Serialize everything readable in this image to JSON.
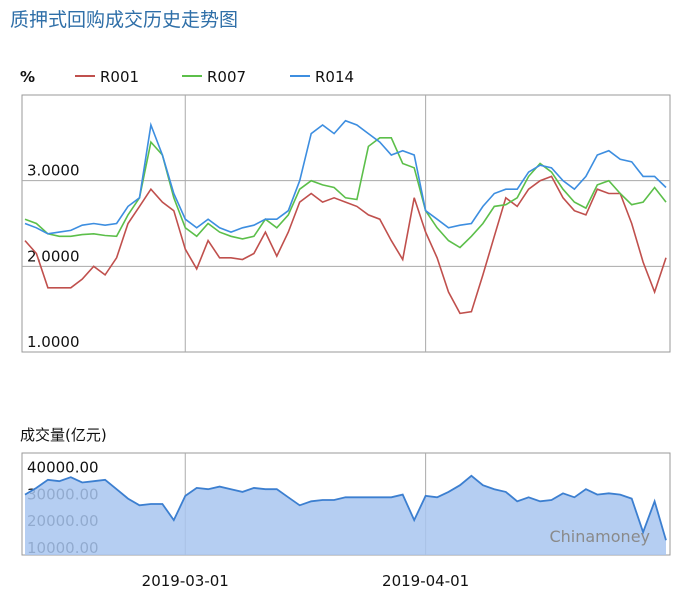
{
  "chart_data": [
    {
      "type": "line",
      "title": "质押式回购成交历史走势图",
      "y_label": "%",
      "ylim": [
        1,
        4
      ],
      "yticks": [
        {
          "value": 1,
          "label": "1.0000"
        },
        {
          "value": 2,
          "label": "2.0000"
        },
        {
          "value": 3,
          "label": "3.0000"
        }
      ],
      "grid": true,
      "series": [
        {
          "name": "R001",
          "color": "#c0504d",
          "values": [
            2.3,
            2.15,
            1.75,
            1.75,
            1.75,
            1.85,
            2.0,
            1.9,
            2.1,
            2.5,
            2.7,
            2.9,
            2.75,
            2.65,
            2.2,
            1.97,
            2.3,
            2.1,
            2.1,
            2.08,
            2.15,
            2.4,
            2.12,
            2.4,
            2.75,
            2.85,
            2.75,
            2.8,
            2.75,
            2.7,
            2.6,
            2.55,
            2.3,
            2.08,
            2.8,
            2.4,
            2.1,
            1.7,
            1.45,
            1.47,
            1.9,
            2.35,
            2.8,
            2.7,
            2.9,
            3.0,
            3.05,
            2.8,
            2.65,
            2.6,
            2.9,
            2.85,
            2.85,
            2.5,
            2.05,
            1.7,
            2.1
          ]
        },
        {
          "name": "R007",
          "color": "#5cbf4a",
          "values": [
            2.55,
            2.5,
            2.38,
            2.35,
            2.35,
            2.37,
            2.38,
            2.36,
            2.35,
            2.6,
            2.8,
            3.45,
            3.3,
            2.8,
            2.45,
            2.35,
            2.5,
            2.4,
            2.35,
            2.32,
            2.35,
            2.55,
            2.45,
            2.6,
            2.9,
            3.0,
            2.95,
            2.92,
            2.8,
            2.78,
            3.4,
            3.5,
            3.5,
            3.2,
            3.15,
            2.65,
            2.45,
            2.3,
            2.22,
            2.35,
            2.5,
            2.7,
            2.72,
            2.8,
            3.05,
            3.2,
            3.1,
            2.9,
            2.75,
            2.68,
            2.95,
            3.0,
            2.85,
            2.72,
            2.75,
            2.92,
            2.75
          ]
        },
        {
          "name": "R014",
          "color": "#3d8ee0",
          "values": [
            2.5,
            2.45,
            2.38,
            2.4,
            2.42,
            2.48,
            2.5,
            2.48,
            2.5,
            2.7,
            2.8,
            3.65,
            3.3,
            2.85,
            2.55,
            2.45,
            2.55,
            2.45,
            2.4,
            2.45,
            2.48,
            2.55,
            2.55,
            2.65,
            3.0,
            3.55,
            3.65,
            3.55,
            3.7,
            3.65,
            3.55,
            3.45,
            3.3,
            3.35,
            3.3,
            2.65,
            2.55,
            2.45,
            2.48,
            2.5,
            2.7,
            2.85,
            2.9,
            2.9,
            3.1,
            3.18,
            3.15,
            3.0,
            2.9,
            3.05,
            3.3,
            3.35,
            3.25,
            3.22,
            3.05,
            3.05,
            2.92
          ]
        }
      ]
    },
    {
      "type": "area",
      "y_label": "成交量(亿元)",
      "annotation": "Chinamoney",
      "color": "#3c7fd0",
      "ylim": [
        7000,
        45000
      ],
      "yticks": [
        {
          "value": 10000,
          "label": "10000.00"
        },
        {
          "value": 20000,
          "label": "20000.00"
        },
        {
          "value": 30000,
          "label": "30000.00"
        },
        {
          "value": 40000,
          "label": "40000.00"
        }
      ],
      "categories": [
        null,
        null,
        null,
        null,
        null,
        null,
        null,
        null,
        null,
        null,
        null,
        null,
        null,
        null,
        "2019-03-01",
        null,
        null,
        null,
        null,
        null,
        null,
        null,
        null,
        null,
        null,
        null,
        null,
        null,
        null,
        null,
        null,
        null,
        null,
        null,
        null,
        "2019-04-01",
        null,
        null,
        null,
        null,
        null,
        null,
        null,
        null,
        null,
        null,
        null,
        null,
        null,
        null,
        null,
        null,
        null,
        null,
        null,
        null,
        null
      ],
      "values": [
        29500,
        32000,
        35000,
        34500,
        36000,
        34000,
        34500,
        35000,
        31500,
        28000,
        25500,
        26000,
        26000,
        20000,
        29000,
        32000,
        31500,
        32500,
        31500,
        30500,
        32000,
        31500,
        31500,
        28500,
        25500,
        27000,
        27500,
        27500,
        28500,
        28500,
        28500,
        28500,
        28500,
        29500,
        20000,
        29000,
        28500,
        30500,
        33000,
        36500,
        33000,
        31500,
        30500,
        27000,
        28500,
        27000,
        27500,
        30000,
        28500,
        31500,
        29500,
        30000,
        29500,
        28000,
        15500,
        27000,
        12500
      ]
    }
  ]
}
